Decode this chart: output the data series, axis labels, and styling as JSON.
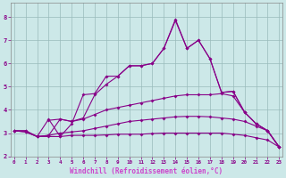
{
  "background_color": "#cce8e8",
  "line_color": "#880088",
  "grid_color": "#99bbbb",
  "xlabel": "Windchill (Refroidissement éolien,°C)",
  "xlabel_color": "#cc44cc",
  "ylabel_ticks": [
    2,
    3,
    4,
    5,
    6,
    7,
    8
  ],
  "xtick_labels": [
    "0",
    "1",
    "2",
    "3",
    "4",
    "5",
    "6",
    "7",
    "8",
    "9",
    "10",
    "11",
    "12",
    "13",
    "14",
    "15",
    "16",
    "17",
    "18",
    "19",
    "20",
    "21",
    "22",
    "23"
  ],
  "xlim": [
    0,
    23
  ],
  "ylim": [
    2.0,
    8.6
  ],
  "lines": [
    {
      "x": [
        0,
        1,
        2,
        3,
        4,
        5,
        6,
        7,
        8,
        9,
        10,
        11,
        12,
        13,
        14,
        15,
        16,
        17,
        18,
        19,
        20,
        21,
        22,
        23
      ],
      "y": [
        3.1,
        3.05,
        2.85,
        2.85,
        2.85,
        2.9,
        2.9,
        2.9,
        2.92,
        2.95,
        2.95,
        2.95,
        2.98,
        3.0,
        3.0,
        3.0,
        3.0,
        3.0,
        3.0,
        2.95,
        2.9,
        2.8,
        2.7,
        2.4
      ]
    },
    {
      "x": [
        0,
        1,
        2,
        3,
        4,
        5,
        6,
        7,
        8,
        9,
        10,
        11,
        12,
        13,
        14,
        15,
        16,
        17,
        18,
        19,
        20,
        21,
        22,
        23
      ],
      "y": [
        3.1,
        3.05,
        2.85,
        2.9,
        3.0,
        3.05,
        3.1,
        3.2,
        3.3,
        3.4,
        3.5,
        3.55,
        3.6,
        3.65,
        3.7,
        3.72,
        3.72,
        3.7,
        3.65,
        3.6,
        3.5,
        3.3,
        3.1,
        2.4
      ]
    },
    {
      "x": [
        0,
        1,
        2,
        3,
        4,
        5,
        6,
        7,
        8,
        9,
        10,
        11,
        12,
        13,
        14,
        15,
        16,
        17,
        18,
        19,
        20,
        21,
        22,
        23
      ],
      "y": [
        3.1,
        3.1,
        2.85,
        2.9,
        3.6,
        3.5,
        3.6,
        3.8,
        4.0,
        4.1,
        4.2,
        4.3,
        4.4,
        4.5,
        4.6,
        4.65,
        4.65,
        4.65,
        4.7,
        4.6,
        3.9,
        3.4,
        3.1,
        2.4
      ]
    },
    {
      "x": [
        0,
        1,
        2,
        3,
        4,
        5,
        6,
        7,
        8,
        9,
        10,
        11,
        12,
        13,
        14,
        15,
        16,
        17,
        18,
        19,
        20,
        21,
        22,
        23
      ],
      "y": [
        3.1,
        3.1,
        2.85,
        3.6,
        2.85,
        3.4,
        4.65,
        4.7,
        5.45,
        5.45,
        5.9,
        5.9,
        6.0,
        6.65,
        7.9,
        6.65,
        7.0,
        6.2,
        4.75,
        4.8,
        3.9,
        3.4,
        3.1,
        2.4
      ]
    },
    {
      "x": [
        3,
        4,
        5,
        6,
        7,
        8,
        9,
        10,
        11,
        12,
        13,
        14,
        15,
        16,
        17,
        18,
        19,
        20,
        21,
        22,
        23
      ],
      "y": [
        3.55,
        3.6,
        3.5,
        3.65,
        4.65,
        5.1,
        5.45,
        5.9,
        5.9,
        6.0,
        6.65,
        7.85,
        6.65,
        7.0,
        6.2,
        4.75,
        4.8,
        3.9,
        3.4,
        3.1,
        2.4
      ]
    }
  ]
}
